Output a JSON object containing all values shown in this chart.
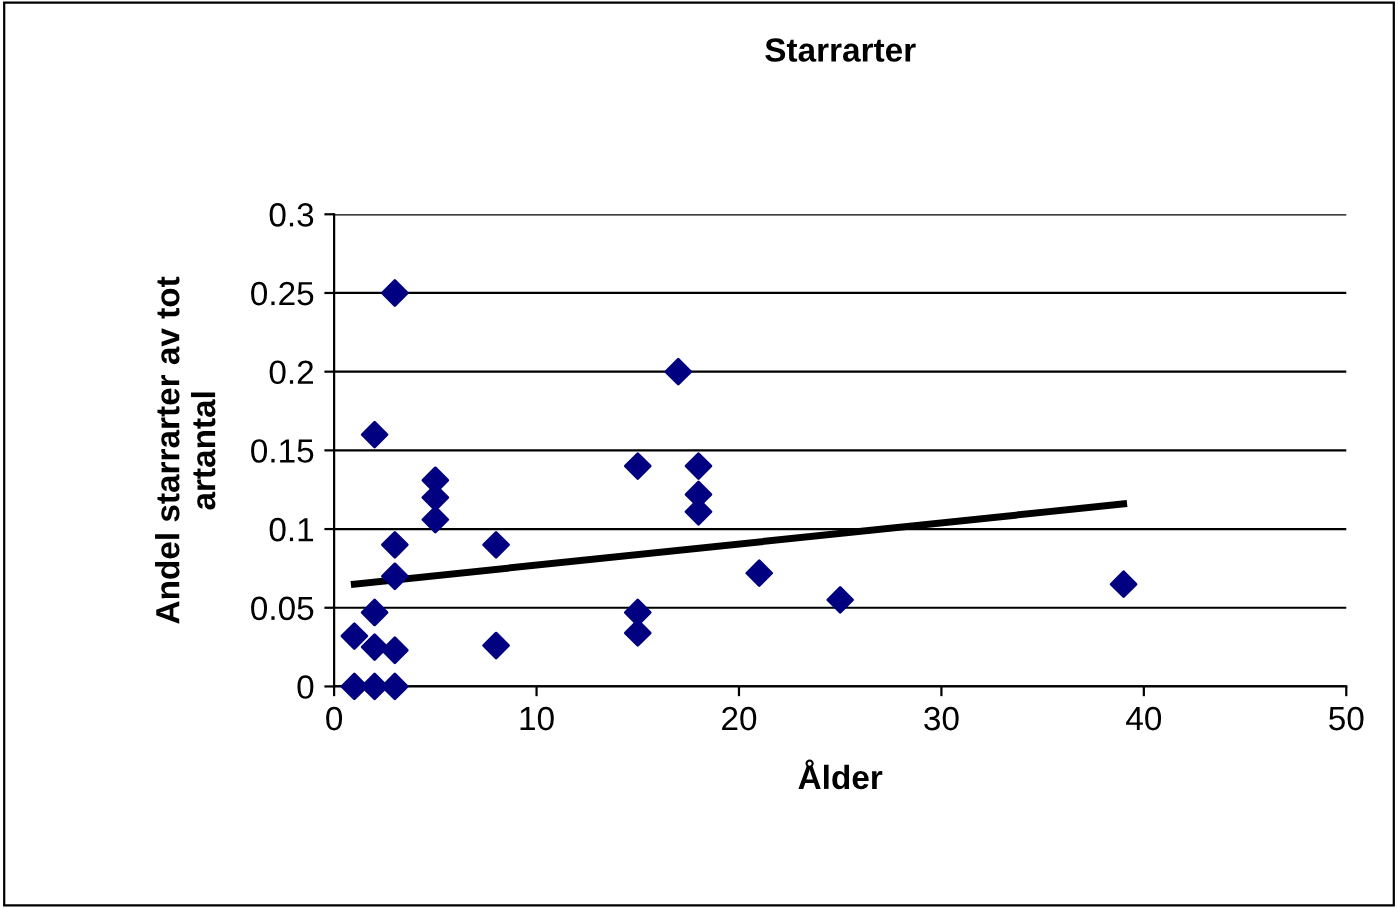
{
  "chart_data": {
    "type": "scatter",
    "title": "Starrarter",
    "xlabel": "Ålder",
    "ylabel": "Andel starrarter av tot\nartantal",
    "series": [
      {
        "color": "#000080",
        "marker": "diamond",
        "x": [
          1,
          1,
          2,
          2,
          2,
          2,
          3,
          3,
          3,
          3,
          3,
          5,
          5,
          5,
          8,
          8,
          15,
          15,
          15,
          17,
          18,
          18,
          18,
          21,
          25,
          39
        ],
        "values": [
          0,
          0.032,
          0,
          0.025,
          0.047,
          0.16,
          0,
          0.023,
          0.07,
          0.09,
          0.25,
          0.106,
          0.12,
          0.131,
          0.09,
          0.026,
          0.14,
          0.047,
          0.034,
          0.2,
          0.14,
          0.122,
          0.111,
          0.072,
          0.055,
          0.065
        ]
      },
      {
        "type": "line",
        "color": "#000000",
        "marker": "none",
        "x": [
          1,
          39
        ],
        "values": [
          0.065,
          0.116
        ]
      }
    ],
    "xlim": [
      0,
      50
    ],
    "xticks": [
      0,
      10,
      20,
      30,
      40,
      50
    ],
    "ylim": [
      0,
      0.3
    ],
    "yticks": [
      0,
      0.05,
      0.1,
      0.15,
      0.2,
      0.25,
      0.3
    ],
    "grid": "y",
    "legend": false
  }
}
